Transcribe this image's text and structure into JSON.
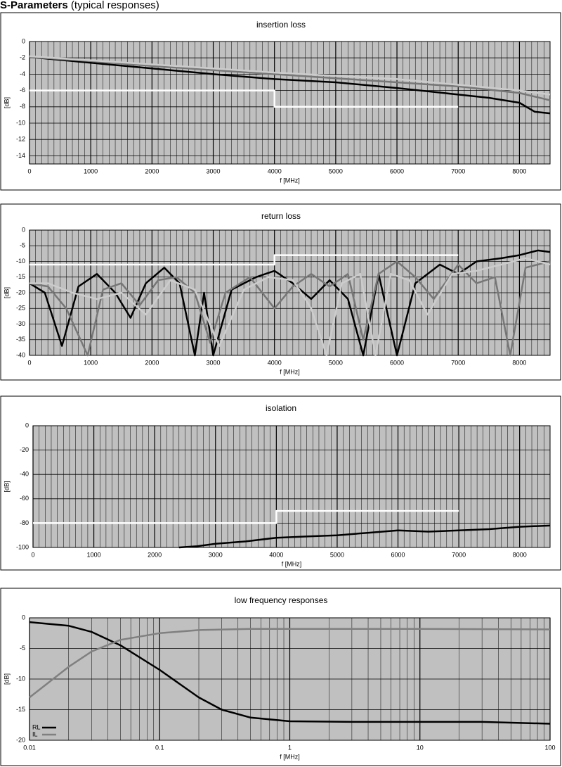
{
  "header": {
    "title": "S-Parameters",
    "subtitle": "(typical responses)"
  },
  "chart_data": [
    {
      "type": "line",
      "title": "insertion loss",
      "x_label": "f [MHz]",
      "y_label": "[dB]",
      "xlim": [
        0,
        8500
      ],
      "xticks": [
        0,
        1000,
        2000,
        3000,
        4000,
        5000,
        6000,
        7000,
        8000
      ],
      "ylim": [
        -15,
        0
      ],
      "yticks": [
        0,
        -2,
        -4,
        -6,
        -8,
        -10,
        -12,
        -14
      ],
      "grid": true,
      "series": [
        {
          "color": "#000000",
          "x": [
            0,
            1000,
            2000,
            3000,
            4000,
            5000,
            6000,
            7000,
            7500,
            8000,
            8250,
            8500
          ],
          "values": [
            -1.9,
            -2.6,
            -3.3,
            -4.0,
            -4.6,
            -5.0,
            -5.7,
            -6.5,
            -6.9,
            -7.5,
            -8.6,
            -8.8
          ]
        },
        {
          "color": "#777777",
          "x": [
            0,
            1000,
            2000,
            3000,
            4000,
            5000,
            6000,
            7000,
            8000,
            8500
          ],
          "values": [
            -1.9,
            -2.4,
            -3.0,
            -3.5,
            -4.0,
            -4.5,
            -5.0,
            -5.5,
            -6.3,
            -7.2
          ]
        },
        {
          "color": "#cccccc",
          "x": [
            0,
            1000,
            2000,
            3000,
            4000,
            5000,
            6000,
            7000,
            8000,
            8500
          ],
          "values": [
            -1.8,
            -2.3,
            -2.8,
            -3.3,
            -3.8,
            -4.2,
            -4.6,
            -5.3,
            -6.0,
            -6.5
          ]
        },
        {
          "color": "#ffffff",
          "x": [
            0,
            4000,
            4000,
            7000
          ],
          "values": [
            -6,
            -6,
            -8,
            -8
          ]
        }
      ]
    },
    {
      "type": "line",
      "title": "return loss",
      "x_label": "f [MHz]",
      "y_label": "[dB]",
      "xlim": [
        0,
        8500
      ],
      "xticks": [
        0,
        1000,
        2000,
        3000,
        4000,
        5000,
        6000,
        7000,
        8000
      ],
      "ylim": [
        -40,
        0
      ],
      "yticks": [
        0,
        -5,
        -10,
        -15,
        -20,
        -25,
        -30,
        -35,
        -40
      ],
      "grid": true,
      "series": [
        {
          "color": "#000000",
          "x": [
            0,
            250,
            530,
            800,
            1100,
            1400,
            1650,
            1900,
            2200,
            2450,
            2700,
            2850,
            3000,
            3300,
            3700,
            4000,
            4300,
            4600,
            4900,
            5200,
            5450,
            5700,
            6000,
            6300,
            6700,
            7000,
            7300,
            7700,
            8000,
            8300,
            8500
          ],
          "values": [
            -17,
            -20,
            -37,
            -18,
            -14,
            -20,
            -28,
            -17,
            -12,
            -17,
            -40,
            -20,
            -40,
            -19,
            -15,
            -13,
            -17,
            -22,
            -16,
            -22,
            -40,
            -14,
            -40,
            -17,
            -11,
            -14,
            -10,
            -9,
            -8,
            -6.5,
            -7
          ]
        },
        {
          "color": "#777777",
          "x": [
            0,
            300,
            600,
            950,
            1200,
            1500,
            1800,
            2100,
            2400,
            2700,
            2950,
            3200,
            3600,
            4000,
            4300,
            4600,
            4900,
            5200,
            5450,
            5700,
            6000,
            6300,
            6600,
            7000,
            7300,
            7600,
            7850,
            8100,
            8500
          ],
          "values": [
            -17,
            -18,
            -25,
            -40,
            -19,
            -17,
            -24,
            -16,
            -15,
            -20,
            -36,
            -20,
            -15,
            -25,
            -18,
            -14,
            -18,
            -14,
            -35,
            -14,
            -10,
            -15,
            -22,
            -11,
            -17,
            -15,
            -40,
            -12,
            -10
          ]
        },
        {
          "color": "#cccccc",
          "x": [
            0,
            300,
            700,
            1100,
            1500,
            1900,
            2300,
            2700,
            3100,
            3500,
            3900,
            4300,
            4600,
            4850,
            5100,
            5400,
            5650,
            5900,
            6200,
            6500,
            6900,
            7300,
            7700,
            8100,
            8500
          ],
          "values": [
            -17,
            -17,
            -20,
            -22,
            -20,
            -27,
            -16,
            -19,
            -37,
            -19,
            -15,
            -16,
            -25,
            -40,
            -17,
            -14,
            -40,
            -14,
            -16,
            -27,
            -14,
            -13,
            -11,
            -9,
            -11
          ]
        },
        {
          "color": "#ffffff",
          "x": [
            0,
            4000,
            4000,
            7000
          ],
          "values": [
            -11,
            -11,
            -8,
            -8
          ]
        }
      ]
    },
    {
      "type": "line",
      "title": "isolation",
      "x_label": "f [MHz]",
      "y_label": "[dB]",
      "xlim": [
        0,
        8500
      ],
      "xticks": [
        0,
        1000,
        2000,
        3000,
        4000,
        5000,
        6000,
        7000,
        8000
      ],
      "ylim": [
        -100,
        0
      ],
      "yticks": [
        0,
        -20,
        -40,
        -60,
        -80,
        -100
      ],
      "grid": true,
      "series": [
        {
          "color": "#000000",
          "x": [
            2400,
            2700,
            3000,
            3500,
            4000,
            4500,
            5000,
            5500,
            6000,
            6500,
            7000,
            7500,
            8000,
            8500
          ],
          "values": [
            -100,
            -99,
            -97,
            -95,
            -92,
            -91,
            -90,
            -88,
            -86,
            -87,
            -86,
            -85,
            -83,
            -82
          ]
        },
        {
          "color": "#ffffff",
          "x": [
            0,
            4000,
            4000,
            7000
          ],
          "values": [
            -80,
            -80,
            -70,
            -70
          ]
        }
      ]
    },
    {
      "type": "line",
      "title": "low frequency responses",
      "x_label": "f [MHz]",
      "y_label": "[dB]",
      "xscale": "log",
      "xlim": [
        0.01,
        100
      ],
      "xticks": [
        0.01,
        0.1,
        1,
        10,
        100
      ],
      "ylim": [
        -20,
        0
      ],
      "yticks": [
        0,
        -5,
        -10,
        -15,
        -20
      ],
      "grid": true,
      "legend": "lower left",
      "series": [
        {
          "name": "RL",
          "color": "#000000",
          "x": [
            0.01,
            0.02,
            0.03,
            0.05,
            0.1,
            0.2,
            0.3,
            0.5,
            1,
            3,
            10,
            30,
            100
          ],
          "values": [
            -0.7,
            -1.3,
            -2.3,
            -4.5,
            -8.5,
            -13,
            -15,
            -16.3,
            -16.9,
            -17,
            -17,
            -17,
            -17.3
          ]
        },
        {
          "name": "IL",
          "color": "#808080",
          "x": [
            0.01,
            0.02,
            0.03,
            0.05,
            0.1,
            0.2,
            0.5,
            1,
            10,
            100
          ],
          "values": [
            -13,
            -8,
            -5.5,
            -3.6,
            -2.5,
            -2.0,
            -1.8,
            -1.8,
            -1.8,
            -1.9
          ]
        }
      ]
    }
  ]
}
